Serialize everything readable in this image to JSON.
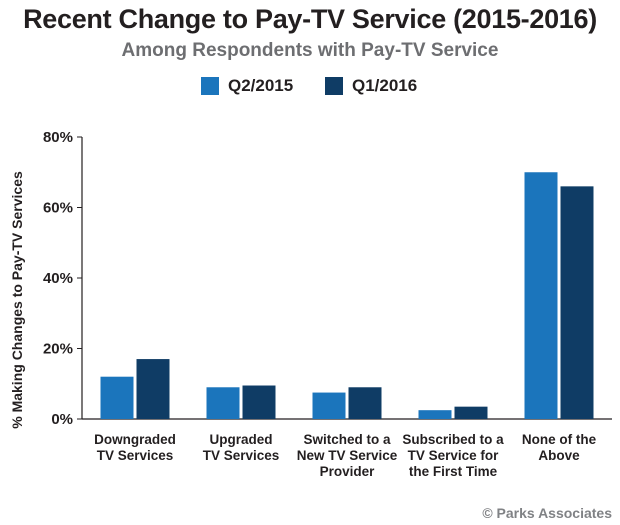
{
  "chart_data": {
    "type": "bar",
    "title": "Recent Change to Pay-TV Service (2015-2016)",
    "subtitle": "Among Respondents with Pay-TV Service",
    "ylabel": "% Making Changes to Pay-TV Services",
    "xlabel": "",
    "ylim": [
      0,
      80
    ],
    "yticks": [
      0,
      20,
      40,
      60,
      80
    ],
    "ytick_labels": [
      "0%",
      "20%",
      "40%",
      "60%",
      "80%"
    ],
    "categories": [
      "Downgraded\nTV Services",
      "Upgraded\nTV Services",
      "Switched to a\nNew TV Service\nProvider",
      "Subscribed to a\nTV Service for\nthe First Time",
      "None of the\nAbove"
    ],
    "series": [
      {
        "name": "Q2/2015",
        "color": "#1b75bc",
        "values": [
          12,
          9,
          7.5,
          2.5,
          70
        ]
      },
      {
        "name": "Q1/2016",
        "color": "#0f3c65",
        "values": [
          17,
          9.5,
          9,
          3.5,
          66
        ]
      }
    ],
    "legend_position": "top-center",
    "grid": false
  },
  "credit": "© Parks Associates"
}
